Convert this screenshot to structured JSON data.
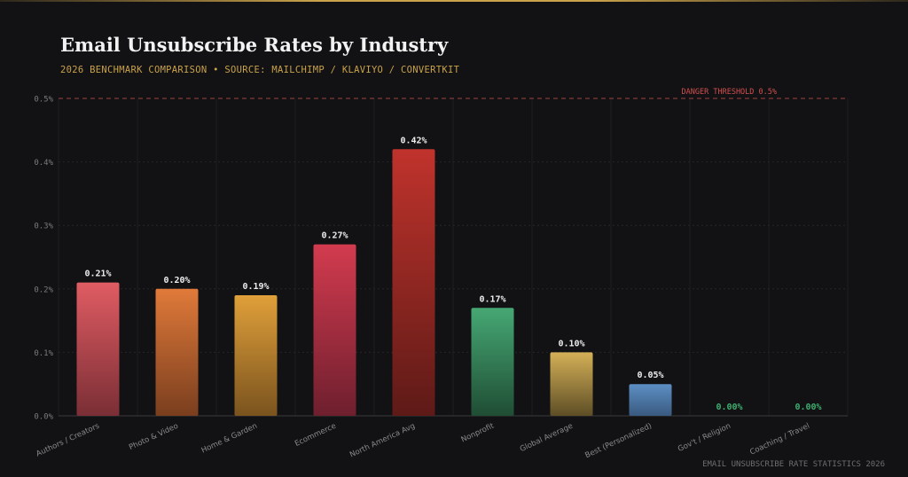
{
  "header": {
    "title": "Email Unsubscribe Rates by Industry",
    "subtitle": "2026 BENCHMARK COMPARISON  •  SOURCE: MAILCHIMP / KLAVIYO / CONVERTKIT"
  },
  "footer": {
    "text": "EMAIL UNSUBSCRIBE RATE STATISTICS 2026"
  },
  "colors": {
    "background": "#121214",
    "accent": "#c9a24a",
    "threshold": "#b84a4a",
    "zero_label": "#3fae6f"
  },
  "chart_data": {
    "type": "bar",
    "title": "Email Unsubscribe Rates by Industry",
    "subtitle": "2026 BENCHMARK COMPARISON  •  SOURCE: MAILCHIMP / KLAVIYO / CONVERTKIT",
    "xlabel": "",
    "ylabel": "",
    "ylim": [
      0,
      0.5
    ],
    "yticks": [
      0.0,
      0.1,
      0.2,
      0.3,
      0.4,
      0.5
    ],
    "ytick_labels": [
      "0.0%",
      "0.1%",
      "0.2%",
      "0.3%",
      "0.4%",
      "0.5%"
    ],
    "grid": true,
    "categories": [
      "Authors / Creators",
      "Photo & Video",
      "Home & Garden",
      "Ecommerce",
      "North America Avg",
      "Nonprofit",
      "Global Average",
      "Best (Personalized)",
      "Gov't / Religion",
      "Coaching / Travel"
    ],
    "values": [
      0.21,
      0.2,
      0.19,
      0.27,
      0.42,
      0.17,
      0.1,
      0.05,
      0.0,
      0.0
    ],
    "value_labels": [
      "0.21%",
      "0.20%",
      "0.19%",
      "0.27%",
      "0.42%",
      "0.17%",
      "0.10%",
      "0.05%",
      "0.00%",
      "0.00%"
    ],
    "bar_colors": [
      [
        "#e05c63",
        "#7a2e35"
      ],
      [
        "#e07a3a",
        "#7a3e1e"
      ],
      [
        "#e0a03a",
        "#7a531e"
      ],
      [
        "#d33b4f",
        "#6e1f2e"
      ],
      [
        "#c0332c",
        "#5e1a17"
      ],
      [
        "#46a874",
        "#1f4d34"
      ],
      [
        "#d4b057",
        "#5e4e26"
      ],
      [
        "#5c8fc4",
        "#3a5a80"
      ],
      [
        "#3fae6f",
        "#1f4d34"
      ],
      [
        "#3fae6f",
        "#1f4d34"
      ]
    ],
    "reference_line": {
      "value": 0.5,
      "label": "DANGER THRESHOLD 0.5%"
    }
  }
}
